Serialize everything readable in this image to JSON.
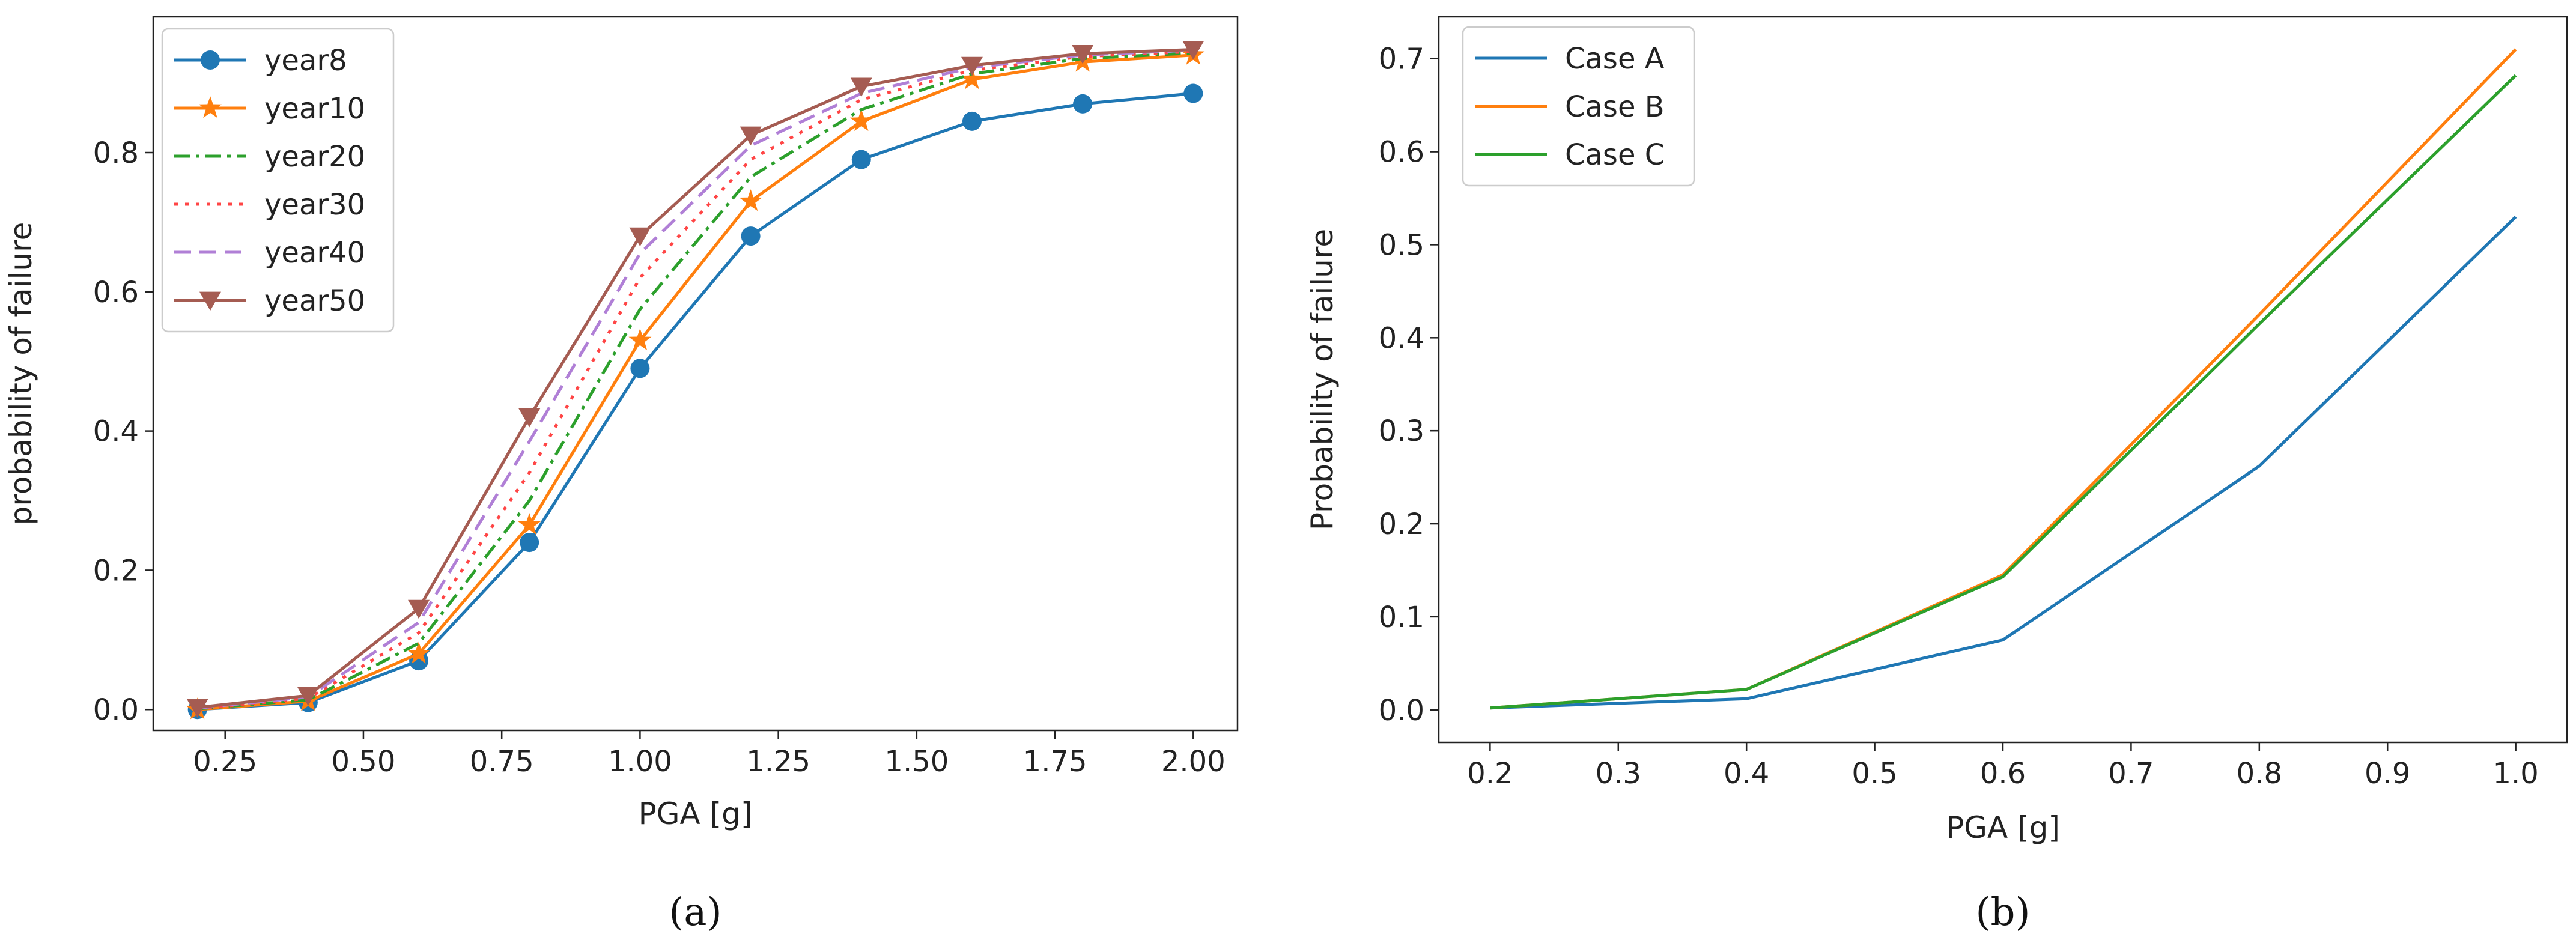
{
  "chart_data": [
    {
      "type": "line",
      "xlabel": "PGA [g]",
      "ylabel": "probability of failure",
      "caption": "(a)",
      "xlim": [
        0.12,
        2.08
      ],
      "ylim": [
        -0.03,
        0.995
      ],
      "xticks": [
        "0.25",
        "0.50",
        "0.75",
        "1.00",
        "1.25",
        "1.50",
        "1.75",
        "2.00"
      ],
      "yticks": [
        "0.0",
        "0.2",
        "0.4",
        "0.6",
        "0.8"
      ],
      "legend_position": "top-left",
      "x": [
        0.2,
        0.4,
        0.6,
        0.8,
        1.0,
        1.2,
        1.4,
        1.6,
        1.8,
        2.0
      ],
      "series": [
        {
          "name": "year8",
          "color": "#1f77b4",
          "dash": "solid",
          "marker": "circle",
          "values": [
            0.0,
            0.01,
            0.07,
            0.24,
            0.49,
            0.68,
            0.79,
            0.845,
            0.87,
            0.885
          ]
        },
        {
          "name": "year10",
          "color": "#ff7f0e",
          "dash": "solid",
          "marker": "star",
          "values": [
            0.0,
            0.012,
            0.08,
            0.265,
            0.53,
            0.73,
            0.845,
            0.905,
            0.93,
            0.94
          ]
        },
        {
          "name": "year20",
          "color": "#2ca02c",
          "dash": "dashdot",
          "marker": "none",
          "values": [
            0.001,
            0.014,
            0.095,
            0.3,
            0.575,
            0.765,
            0.862,
            0.913,
            0.935,
            0.943
          ]
        },
        {
          "name": "year30",
          "color": "#ff4545",
          "dash": "dotted",
          "marker": "none",
          "values": [
            0.001,
            0.016,
            0.11,
            0.34,
            0.62,
            0.79,
            0.876,
            0.918,
            0.938,
            0.945
          ]
        },
        {
          "name": "year40",
          "color": "#b07fd6",
          "dash": "dashed",
          "marker": "none",
          "values": [
            0.002,
            0.018,
            0.125,
            0.385,
            0.655,
            0.81,
            0.885,
            0.922,
            0.94,
            0.947
          ]
        },
        {
          "name": "year50",
          "color": "#a55c52",
          "dash": "solid",
          "marker": "triangle-down",
          "values": [
            0.003,
            0.02,
            0.145,
            0.42,
            0.68,
            0.825,
            0.895,
            0.925,
            0.942,
            0.948
          ]
        }
      ]
    },
    {
      "type": "line",
      "xlabel": "PGA [g]",
      "ylabel": "Probability of failure",
      "caption": "(b)",
      "xlim": [
        0.16,
        1.04
      ],
      "ylim": [
        -0.035,
        0.745
      ],
      "xticks": [
        "0.2",
        "0.3",
        "0.4",
        "0.5",
        "0.6",
        "0.7",
        "0.8",
        "0.9",
        "1.0"
      ],
      "yticks": [
        "0.0",
        "0.1",
        "0.2",
        "0.3",
        "0.4",
        "0.5",
        "0.6",
        "0.7"
      ],
      "legend_position": "top-left",
      "x": [
        0.2,
        0.4,
        0.6,
        0.8,
        1.0
      ],
      "series": [
        {
          "name": "Case A",
          "color": "#1f77b4",
          "dash": "solid",
          "marker": "none",
          "values": [
            0.002,
            0.012,
            0.075,
            0.262,
            0.53
          ]
        },
        {
          "name": "Case B",
          "color": "#ff7f0e",
          "dash": "solid",
          "marker": "none",
          "values": [
            0.002,
            0.022,
            0.145,
            0.425,
            0.71
          ]
        },
        {
          "name": "Case C",
          "color": "#2ca02c",
          "dash": "solid",
          "marker": "none",
          "values": [
            0.002,
            0.022,
            0.143,
            0.415,
            0.682
          ]
        }
      ]
    }
  ]
}
